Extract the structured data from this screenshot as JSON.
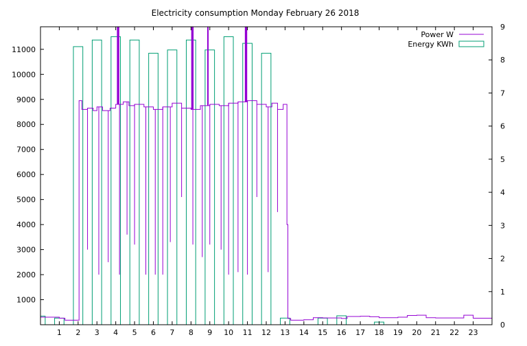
{
  "chart_data": {
    "type": "line",
    "title": "Electricity consumption Monday February 26 2018",
    "x": {
      "range": [
        0,
        24
      ],
      "ticks": [
        1,
        2,
        3,
        4,
        5,
        6,
        7,
        8,
        9,
        10,
        11,
        12,
        13,
        14,
        15,
        16,
        17,
        18,
        19,
        20,
        21,
        22,
        23
      ]
    },
    "y_left": {
      "range": [
        0,
        11900
      ],
      "ticks": [
        1000,
        2000,
        3000,
        4000,
        5000,
        6000,
        7000,
        8000,
        9000,
        10000,
        11000
      ]
    },
    "y_right": {
      "range": [
        0,
        9
      ],
      "ticks": [
        0,
        1,
        2,
        3,
        4,
        5,
        6,
        7,
        8,
        9
      ]
    },
    "grid": false,
    "legend_position": "top-right",
    "series": [
      {
        "name": "Power W",
        "axis": "left",
        "color": "#9400d3",
        "style": "step-line",
        "points": [
          [
            0.0,
            300
          ],
          [
            1.0,
            260
          ],
          [
            1.3,
            180
          ],
          [
            2.0,
            180
          ],
          [
            2.05,
            8950
          ],
          [
            2.2,
            8600
          ],
          [
            2.5,
            8650
          ],
          [
            2.8,
            8550
          ],
          [
            3.0,
            8700
          ],
          [
            3.3,
            8550
          ],
          [
            3.7,
            8650
          ],
          [
            4.0,
            8800
          ],
          [
            4.4,
            8900
          ],
          [
            4.7,
            8750
          ],
          [
            5.0,
            8800
          ],
          [
            5.5,
            8700
          ],
          [
            6.0,
            8600
          ],
          [
            6.5,
            8700
          ],
          [
            7.0,
            8850
          ],
          [
            7.5,
            8650
          ],
          [
            8.0,
            8600
          ],
          [
            8.5,
            8750
          ],
          [
            9.0,
            8800
          ],
          [
            9.5,
            8750
          ],
          [
            10.0,
            8850
          ],
          [
            10.5,
            8900
          ],
          [
            11.0,
            8950
          ],
          [
            11.5,
            8800
          ],
          [
            12.0,
            8700
          ],
          [
            12.3,
            8850
          ],
          [
            12.6,
            8600
          ],
          [
            12.9,
            8800
          ],
          [
            13.05,
            8800
          ],
          [
            13.1,
            4000
          ],
          [
            13.15,
            250
          ],
          [
            13.3,
            180
          ],
          [
            14.0,
            200
          ],
          [
            14.5,
            280
          ],
          [
            15.0,
            270
          ],
          [
            16.0,
            250
          ],
          [
            16.3,
            330
          ],
          [
            17.0,
            340
          ],
          [
            17.5,
            320
          ],
          [
            18.0,
            280
          ],
          [
            19.0,
            300
          ],
          [
            19.5,
            370
          ],
          [
            20.0,
            380
          ],
          [
            20.5,
            280
          ],
          [
            21.0,
            270
          ],
          [
            22.0,
            270
          ],
          [
            22.5,
            380
          ],
          [
            23.0,
            260
          ],
          [
            24.0,
            260
          ]
        ],
        "spikes_up": [
          {
            "x": 4.1,
            "y": 11900
          },
          {
            "x": 4.15,
            "y": 11900
          },
          {
            "x": 8.05,
            "y": 11900
          },
          {
            "x": 8.1,
            "y": 11900
          },
          {
            "x": 8.9,
            "y": 11900
          },
          {
            "x": 10.9,
            "y": 11900
          },
          {
            "x": 10.95,
            "y": 11900
          }
        ],
        "spikes_down": [
          {
            "x": 2.5,
            "y": 3000
          },
          {
            "x": 3.1,
            "y": 2000
          },
          {
            "x": 3.6,
            "y": 2500
          },
          {
            "x": 4.2,
            "y": 2000
          },
          {
            "x": 4.6,
            "y": 3600
          },
          {
            "x": 5.0,
            "y": 3200
          },
          {
            "x": 5.6,
            "y": 2000
          },
          {
            "x": 6.1,
            "y": 2000
          },
          {
            "x": 6.5,
            "y": 2000
          },
          {
            "x": 6.9,
            "y": 3300
          },
          {
            "x": 7.5,
            "y": 5100
          },
          {
            "x": 8.1,
            "y": 3200
          },
          {
            "x": 8.6,
            "y": 2700
          },
          {
            "x": 9.0,
            "y": 3200
          },
          {
            "x": 9.6,
            "y": 3000
          },
          {
            "x": 10.0,
            "y": 2000
          },
          {
            "x": 10.5,
            "y": 2100
          },
          {
            "x": 11.0,
            "y": 2000
          },
          {
            "x": 11.5,
            "y": 5100
          },
          {
            "x": 12.1,
            "y": 2100
          },
          {
            "x": 12.6,
            "y": 4500
          }
        ]
      },
      {
        "name": "Energy KWh",
        "axis": "right",
        "color": "#009e73",
        "style": "boxes",
        "bars": [
          {
            "x": 0.0,
            "w": 0.25,
            "value": 0.26
          },
          {
            "x": 0.75,
            "w": 0.5,
            "value": 0.2
          },
          {
            "x": 1.75,
            "w": 0.5,
            "value": 8.4
          },
          {
            "x": 2.75,
            "w": 0.5,
            "value": 8.6
          },
          {
            "x": 3.75,
            "w": 0.5,
            "value": 8.7
          },
          {
            "x": 4.75,
            "w": 0.5,
            "value": 8.6
          },
          {
            "x": 5.75,
            "w": 0.5,
            "value": 8.2
          },
          {
            "x": 6.75,
            "w": 0.5,
            "value": 8.3
          },
          {
            "x": 7.75,
            "w": 0.5,
            "value": 8.6
          },
          {
            "x": 8.75,
            "w": 0.5,
            "value": 8.3
          },
          {
            "x": 9.75,
            "w": 0.5,
            "value": 8.7
          },
          {
            "x": 10.75,
            "w": 0.5,
            "value": 8.5
          },
          {
            "x": 11.75,
            "w": 0.5,
            "value": 8.2
          },
          {
            "x": 12.75,
            "w": 0.5,
            "value": 0.2
          },
          {
            "x": 14.75,
            "w": 0.5,
            "value": 0.2
          },
          {
            "x": 15.75,
            "w": 0.5,
            "value": 0.27
          },
          {
            "x": 17.75,
            "w": 0.5,
            "value": 0.08
          }
        ]
      }
    ]
  }
}
